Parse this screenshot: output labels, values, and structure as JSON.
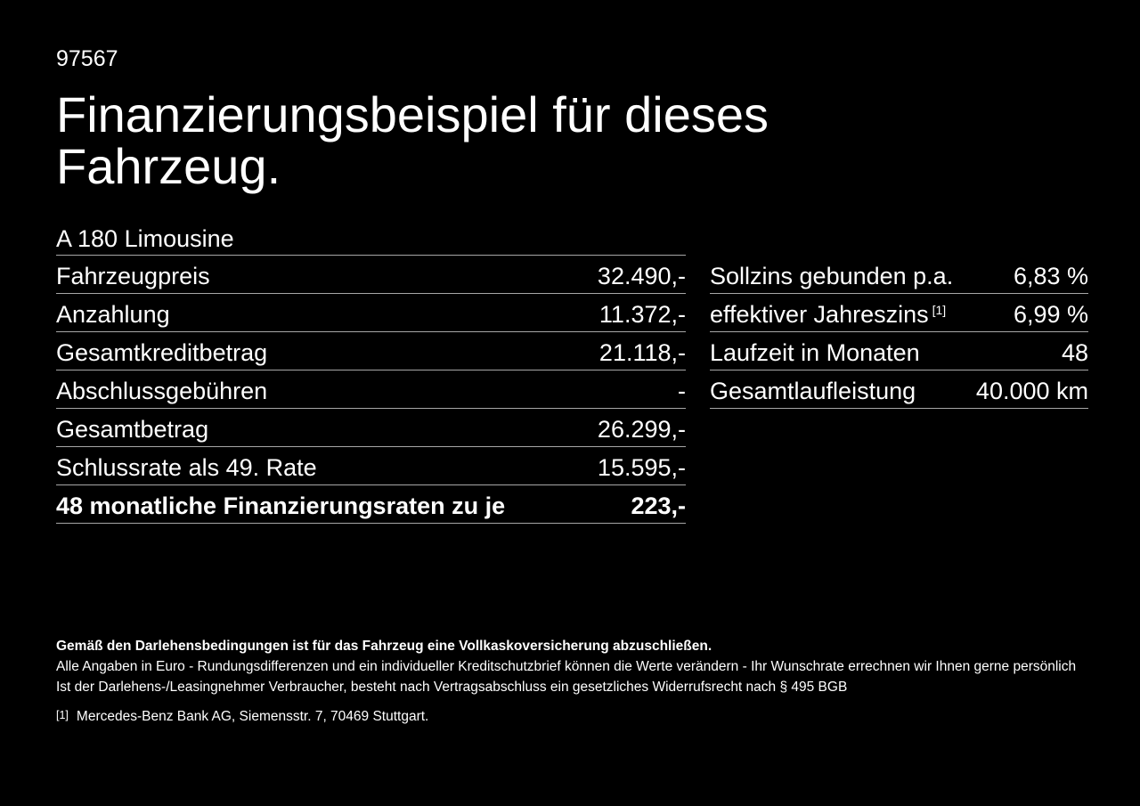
{
  "page": {
    "vehicle_id": "97567",
    "title_line1": "Finanzierungsbeispiel für dieses",
    "title_line2": "Fahrzeug.",
    "model": "A 180 Limousine"
  },
  "left_table": {
    "rows": [
      {
        "label": "Fahrzeugpreis",
        "value": "32.490,-"
      },
      {
        "label": "Anzahlung",
        "value": "11.372,-"
      },
      {
        "label": "Gesamtkreditbetrag",
        "value": "21.118,-"
      },
      {
        "label": "Abschlussgebühren",
        "value": "-"
      },
      {
        "label": "Gesamtbetrag",
        "value": "26.299,-"
      },
      {
        "label": "Schlussrate als 49. Rate",
        "value": "15.595,-"
      },
      {
        "label": "48 monatliche Finanzierungsraten zu je",
        "value": "223,-"
      }
    ]
  },
  "right_table": {
    "rows": [
      {
        "label": "Sollzins gebunden p.a.",
        "sup": "",
        "value": "6,83 %"
      },
      {
        "label": "effektiver Jahreszins",
        "sup": "[1]",
        "value": "6,99 %"
      },
      {
        "label": "Laufzeit in Monaten",
        "sup": "",
        "value": "48"
      },
      {
        "label": "Gesamtlaufleistung",
        "sup": "",
        "value": "40.000 km"
      }
    ]
  },
  "footer": {
    "bold_note": "Gemäß den Darlehensbedingungen ist für das Fahrzeug eine Vollkaskoversicherung abzuschließen.",
    "notes": [
      "Alle Angaben in Euro - Rundungsdifferenzen und ein individueller Kreditschutzbrief können die Werte verändern - Ihr Wunschrate errechnen wir Ihnen gerne persönlich",
      "Ist der Darlehens-/Leasingnehmer Verbraucher, besteht nach Vertragsabschluss ein gesetzliches Widerrufsrecht nach § 495 BGB"
    ],
    "footnote_marker": "[1]",
    "footnote_text": "Mercedes-Benz Bank AG, Siemensstr. 7, 70469 Stuttgart."
  },
  "colors": {
    "background": "#000000",
    "text": "#ffffff",
    "divider": "#a6a6a6"
  }
}
